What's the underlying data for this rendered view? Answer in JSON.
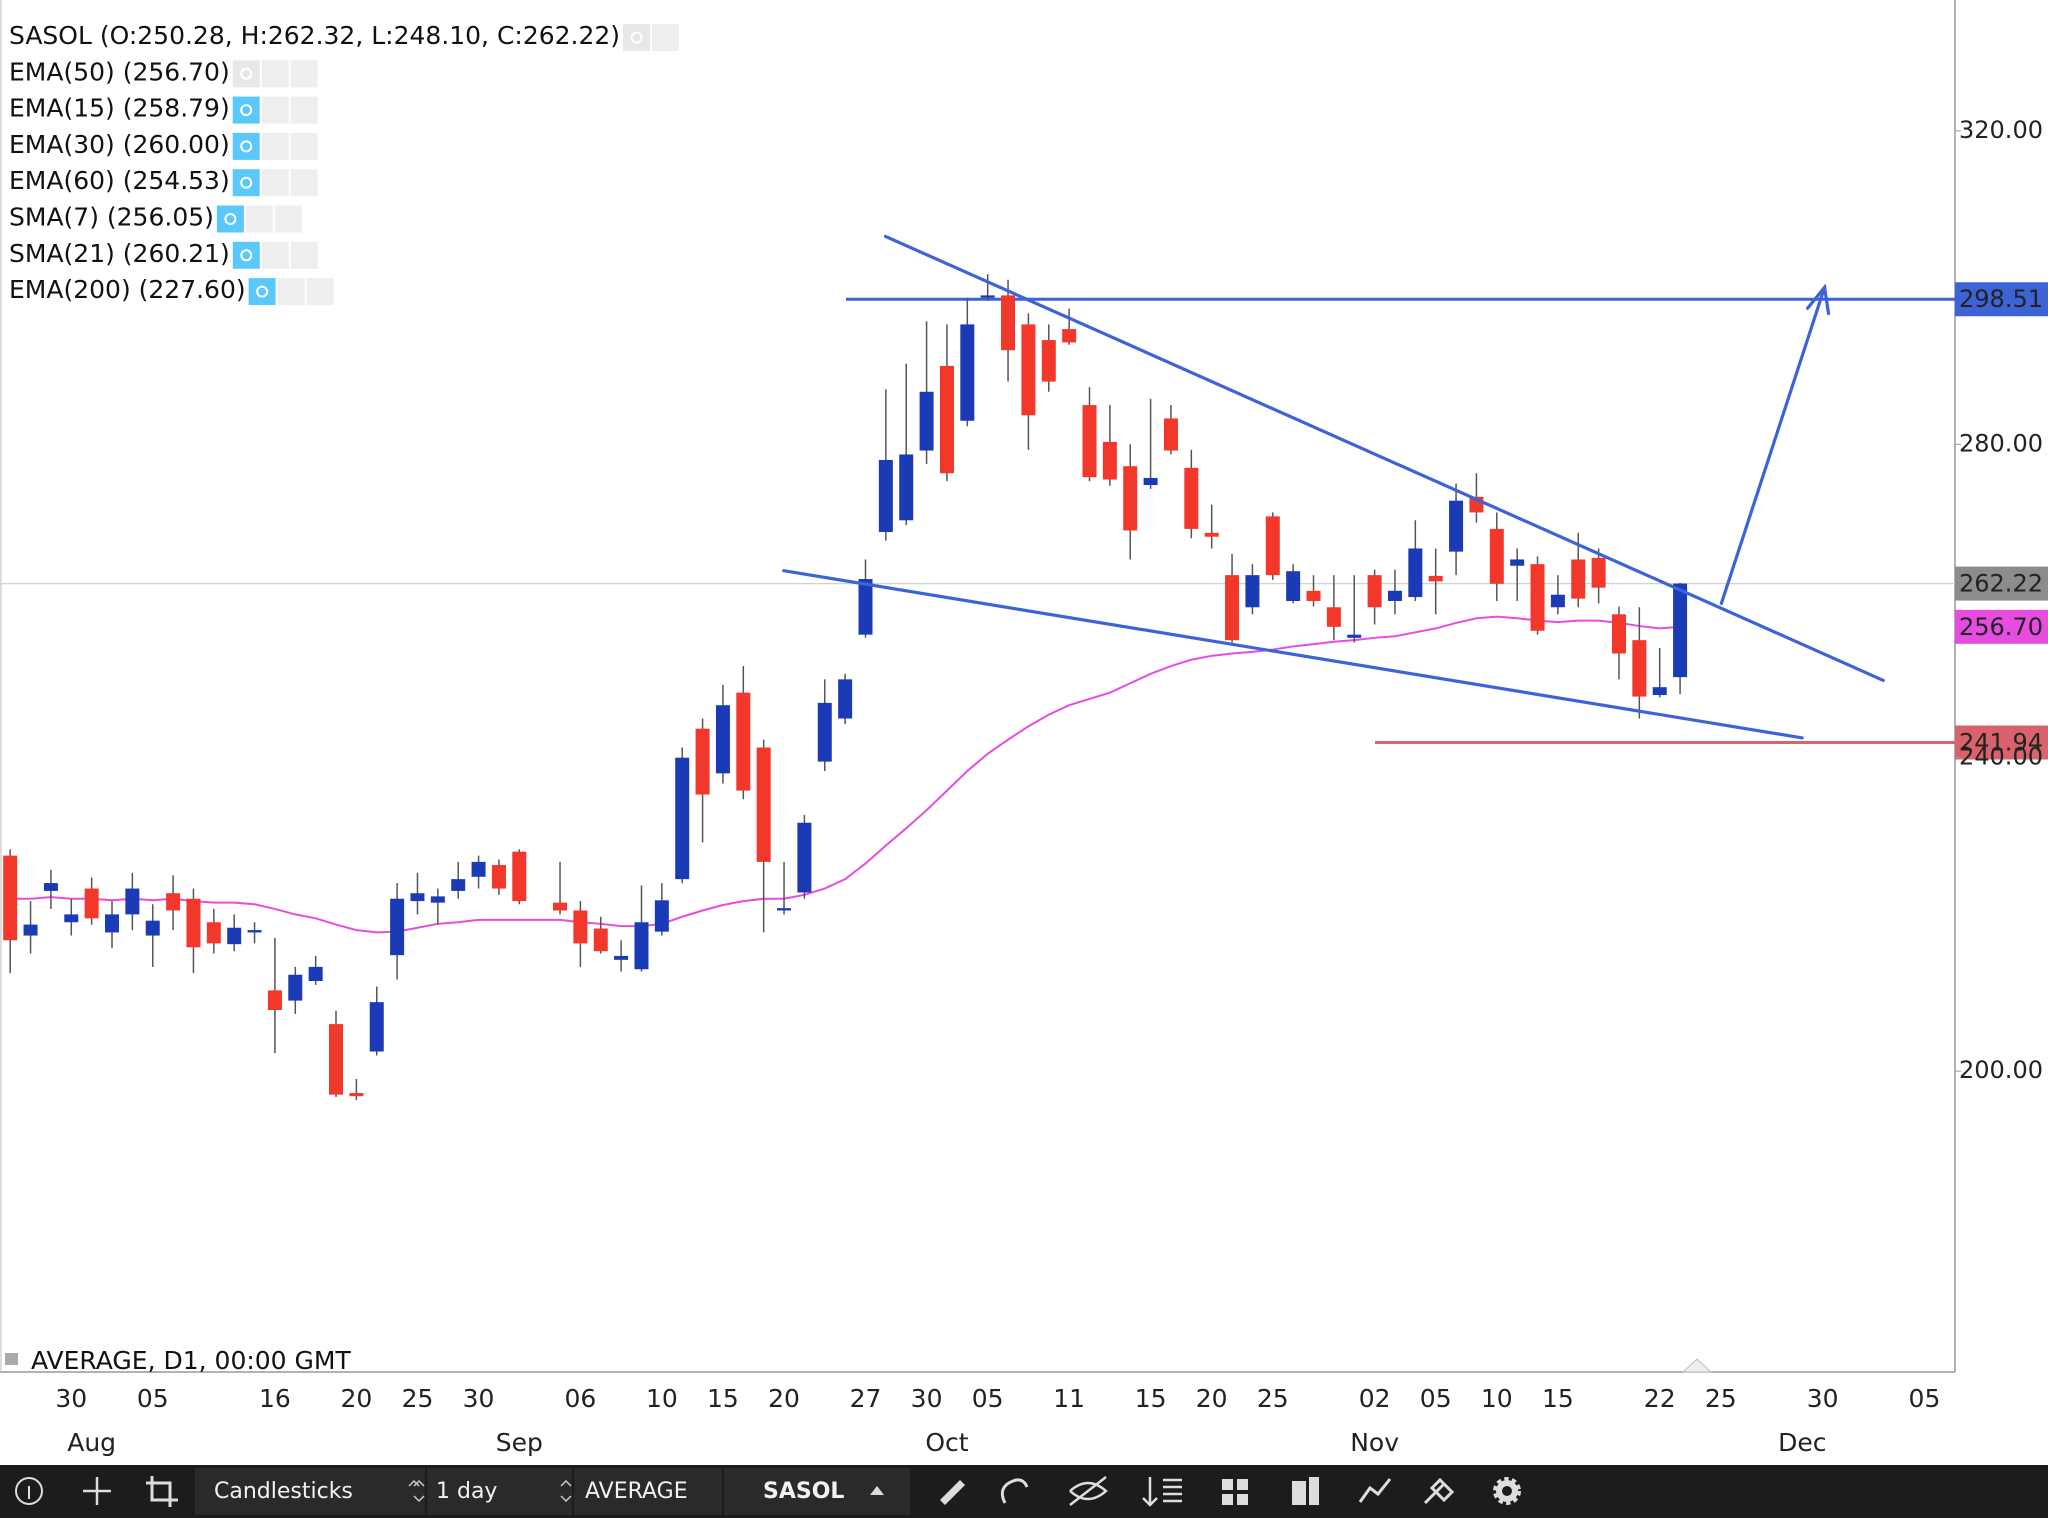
{
  "chart_data": {
    "type": "candlestick",
    "legend": [
      "SASOL (O:250.28, H:262.32, L:248.10, C:262.22)",
      "EMA(50) (256.70)",
      "EMA(15) (258.79)",
      "EMA(30) (260.00)",
      "EMA(60) (254.53)",
      "SMA(7) (256.05)",
      "SMA(21) (260.21)",
      "EMA(200) (227.60)"
    ],
    "footer_label": "AVERAGE, D1, 00:00 GMT",
    "up_color": "#1a3bb5",
    "down_color": "#f2372b",
    "wick_color": "#555555",
    "overlay_color": "#e64ce0",
    "ylim": [
      161.6,
      336.7
    ],
    "yticks": [
      {
        "value": 200,
        "label": "200.00"
      },
      {
        "value": 240,
        "label": "240.00"
      },
      {
        "value": 280,
        "label": "280.00"
      },
      {
        "value": 320,
        "label": "320.00"
      }
    ],
    "price_markers": [
      {
        "value": 262.22,
        "label": "262.22",
        "color": "#8c8c8c"
      },
      {
        "value": 256.7,
        "label": "256.70",
        "color": "#e64ce0"
      },
      {
        "value": 298.51,
        "label": "298.51",
        "color": "#3d63d6"
      },
      {
        "value": 241.94,
        "label": "241.94",
        "color": "#d9626c"
      }
    ],
    "categories": [
      null,
      null,
      null,
      "30",
      null,
      null,
      null,
      "05",
      null,
      null,
      null,
      null,
      null,
      "16",
      null,
      null,
      null,
      "20",
      null,
      null,
      "25",
      null,
      null,
      "30",
      null,
      null,
      null,
      null,
      "06",
      null,
      null,
      null,
      "10",
      null,
      null,
      "15",
      null,
      null,
      "20",
      null,
      null,
      null,
      "27",
      null,
      null,
      "30",
      null,
      null,
      "05",
      null,
      null,
      null,
      "11",
      null,
      null,
      null,
      "15",
      null,
      null,
      "20",
      null,
      null,
      "25",
      null,
      null,
      null,
      null,
      "02",
      null,
      null,
      "05",
      null,
      null,
      "10",
      null,
      null,
      "15",
      null,
      null,
      null,
      null,
      "22",
      null,
      null,
      "25",
      null,
      null,
      null,
      null,
      "30",
      null,
      null,
      null,
      null,
      "05",
      null
    ],
    "months": [
      null,
      null,
      null,
      null,
      "Aug",
      null,
      null,
      null,
      null,
      null,
      null,
      null,
      null,
      null,
      null,
      null,
      null,
      null,
      null,
      null,
      null,
      null,
      null,
      null,
      null,
      "Sep",
      null,
      null,
      null,
      null,
      null,
      null,
      null,
      null,
      null,
      null,
      null,
      null,
      null,
      null,
      null,
      null,
      null,
      null,
      null,
      null,
      "Oct",
      null,
      null,
      null,
      null,
      null,
      null,
      null,
      null,
      null,
      null,
      null,
      null,
      null,
      null,
      null,
      null,
      null,
      null,
      null,
      null,
      "Nov",
      null,
      null,
      null,
      null,
      null,
      null,
      null,
      null,
      null,
      null,
      null,
      null,
      null,
      null,
      null,
      null,
      null,
      null,
      null,
      null,
      "Dec",
      null,
      null,
      null,
      null,
      null
    ],
    "open": [
      227.5,
      217.3,
      223,
      219,
      223.3,
      217.7,
      220,
      217.3,
      222.7,
      222,
      219,
      216.2,
      217.7,
      210.3,
      209,
      211.5,
      206,
      197.2,
      202.5,
      214.8,
      221.7,
      221.5,
      223,
      224.8,
      226.3,
      228,
      null,
      221.5,
      220.5,
      218.2,
      214.2,
      213,
      217.8,
      224.5,
      243.7,
      238,
      248.3,
      241.3,
      220.5,
      222.8,
      239.5,
      245,
      255.7,
      268.8,
      270.3,
      279.2,
      290,
      283,
      298.7,
      299,
      295.3,
      293.3,
      294.7,
      285,
      280.3,
      277.2,
      274.8,
      283.3,
      277,
      268.7,
      263.3,
      259.2,
      270.8,
      260,
      261.3,
      259.2,
      255.3,
      263.3,
      260,
      260.5,
      263.2,
      266.3,
      273.3,
      269.2,
      264.5,
      264.7,
      259.2,
      265.3,
      265.5,
      258.3,
      255,
      248,
      250.28,
      null,
      null,
      null,
      null,
      null,
      null,
      null,
      null,
      null,
      null,
      null,
      null,
      null
    ],
    "high": [
      228.3,
      221.7,
      225.7,
      222,
      224.7,
      221.7,
      225.3,
      221.3,
      225,
      223.3,
      220.7,
      220,
      219,
      217,
      213.3,
      214.7,
      207.7,
      199,
      210.8,
      224,
      225.3,
      223.3,
      226.7,
      227.5,
      227,
      228.3,
      null,
      226.7,
      221.7,
      219.7,
      216.7,
      223.7,
      224,
      241.3,
      245,
      249.3,
      251.7,
      242.3,
      226.7,
      232.7,
      250,
      250.7,
      265.3,
      287,
      290.3,
      295.7,
      295.3,
      298.7,
      301.7,
      301,
      296.7,
      295.3,
      297.3,
      287.3,
      285,
      280,
      285.8,
      285,
      279.3,
      272.3,
      266,
      264.7,
      271.3,
      264.7,
      263.3,
      263.3,
      263.3,
      264,
      264,
      270.3,
      266.7,
      275,
      276.3,
      271.3,
      266.7,
      265.7,
      263.3,
      268.7,
      266.7,
      259.3,
      259.2,
      254,
      262.32,
      null,
      null,
      null,
      null,
      null,
      null,
      null,
      null,
      null,
      null,
      null,
      null,
      null
    ],
    "low": [
      212.5,
      215,
      220.7,
      217.3,
      218.7,
      215.7,
      218,
      213.3,
      218,
      212.5,
      215,
      215.3,
      216.3,
      202.3,
      207.3,
      211,
      196.7,
      196.3,
      202,
      211.7,
      220,
      218.7,
      222,
      223.3,
      222.5,
      221.3,
      null,
      220,
      213.3,
      215,
      212.7,
      212.7,
      217.3,
      224,
      229.2,
      236.7,
      234.7,
      217.7,
      220,
      222,
      238.3,
      244.3,
      255.3,
      267.7,
      269.7,
      277.5,
      275.3,
      282.3,
      298.3,
      288,
      279.3,
      286.7,
      292.7,
      275.3,
      274.7,
      265.3,
      274.3,
      278.7,
      268,
      266.7,
      254.7,
      258.3,
      262.7,
      259.7,
      259.3,
      255,
      254.7,
      257,
      258.3,
      260,
      258.3,
      263.3,
      270,
      260,
      260,
      255.7,
      258.3,
      259.2,
      259.7,
      250,
      245,
      247.7,
      248.1,
      null,
      null,
      null,
      null,
      null,
      null,
      null,
      null,
      null,
      null,
      null,
      null,
      null
    ],
    "close": [
      216.7,
      218.7,
      224,
      220,
      219.5,
      220,
      223.3,
      219.2,
      220.5,
      215.8,
      216.3,
      218.3,
      218,
      207.8,
      212.3,
      213.3,
      197,
      196.8,
      208.8,
      222,
      222.7,
      222.3,
      224.5,
      226.7,
      223.3,
      221.7,
      null,
      220.5,
      216.3,
      215.3,
      214.7,
      219,
      221.8,
      240,
      235.3,
      246.7,
      235.8,
      226.7,
      220.8,
      231.7,
      247,
      250,
      262.8,
      278,
      278.7,
      286.7,
      276.3,
      295.3,
      299,
      292,
      283.7,
      288,
      293,
      275.8,
      275.5,
      269,
      275.7,
      279.2,
      269.2,
      268.2,
      255,
      263.3,
      263.3,
      263.8,
      260,
      256.7,
      255.7,
      259.2,
      261.3,
      266.7,
      262.5,
      272.8,
      271.3,
      262.2,
      265.3,
      256.2,
      260.8,
      260.3,
      261.7,
      253.3,
      247.8,
      249,
      262.22,
      null,
      null,
      null,
      null,
      null,
      null,
      null,
      null,
      null,
      null,
      null,
      null,
      null
    ],
    "overlay": [
      222,
      222,
      222.2,
      222,
      222,
      221.8,
      222,
      221.8,
      222,
      221.7,
      221.5,
      221.5,
      221.3,
      220.7,
      220,
      219.5,
      218.7,
      218,
      217.7,
      217.8,
      218.3,
      218.8,
      219,
      219.3,
      219.3,
      219.3,
      219.3,
      219.3,
      219,
      218.8,
      218.5,
      218.5,
      218.8,
      219.7,
      220.5,
      221.2,
      221.7,
      222,
      222,
      222.5,
      223.3,
      224.5,
      226.5,
      228.8,
      231,
      233.3,
      235.8,
      238.3,
      240.5,
      242.3,
      244,
      245.5,
      246.7,
      247.5,
      248.3,
      249.5,
      250.7,
      251.7,
      252.5,
      253,
      253.3,
      253.5,
      253.8,
      254.2,
      254.5,
      254.8,
      255,
      255.3,
      255.5,
      256,
      256.5,
      257.2,
      257.8,
      258,
      257.8,
      257.5,
      257.3,
      257.5,
      257.5,
      257.2,
      256.8,
      256.5,
      256.7,
      null,
      null,
      null,
      null,
      null,
      null,
      null,
      null,
      null,
      null,
      null,
      null,
      null
    ]
  },
  "toolbar": {
    "chart_type": "Candlesticks",
    "interval": "1 day",
    "price": "AVERAGE",
    "symbol": "SASOL"
  }
}
